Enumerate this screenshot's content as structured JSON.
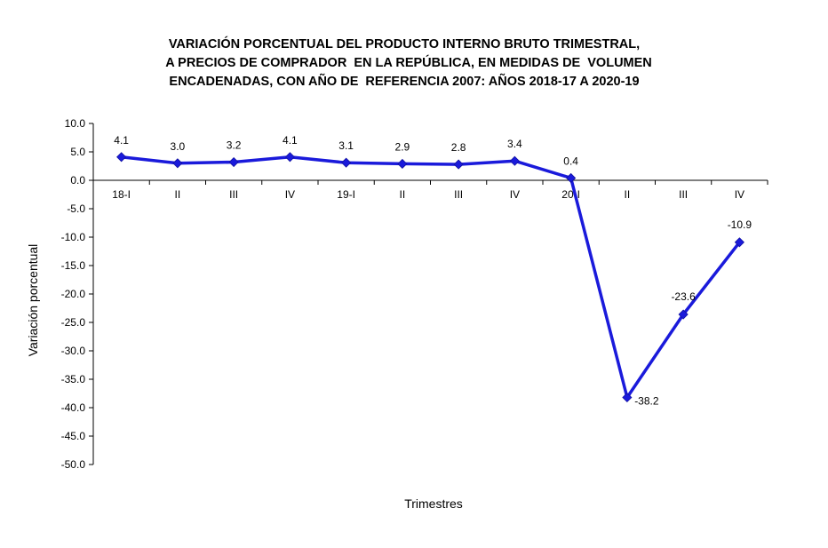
{
  "chart_data": {
    "type": "line",
    "title_lines": [
      "VARIACIÓN PORCENTUAL DEL PRODUCTO INTERNO BRUTO TRIMESTRAL,",
      "A PRECIOS DE COMPRADOR  EN LA REPÚBLICA, EN MEDIDAS DE  VOLUMEN",
      "ENCADENADAS, CON AÑO DE  REFERENCIA 2007: AÑOS 2018-17 A 2020-19"
    ],
    "xlabel": "Trimestres",
    "ylabel": "Variación porcentual",
    "categories": [
      "18-I",
      "II",
      "III",
      "IV",
      "19-I",
      "II",
      "III",
      "IV",
      "20-I",
      "II",
      "III",
      "IV"
    ],
    "series": [
      {
        "name": "Variación porcentual",
        "values": [
          4.1,
          3.0,
          3.2,
          4.1,
          3.1,
          2.9,
          2.8,
          3.4,
          0.4,
          -38.2,
          -23.6,
          -10.9
        ]
      }
    ],
    "data_labels": [
      "4.1",
      "3.0",
      "3.2",
      "4.1",
      "3.1",
      "2.9",
      "2.8",
      "3.4",
      "0.4",
      "-38.2",
      "-23.6",
      "-10.9"
    ],
    "y_ticks": [
      "10.0",
      "5.0",
      "0.0",
      "-5.0",
      "-10.0",
      "-15.0",
      "-20.0",
      "-25.0",
      "-30.0",
      "-35.0",
      "-40.0",
      "-45.0",
      "-50.0"
    ],
    "ylim": [
      -50,
      10
    ],
    "line_color": "#1a1adb",
    "grid": false
  }
}
